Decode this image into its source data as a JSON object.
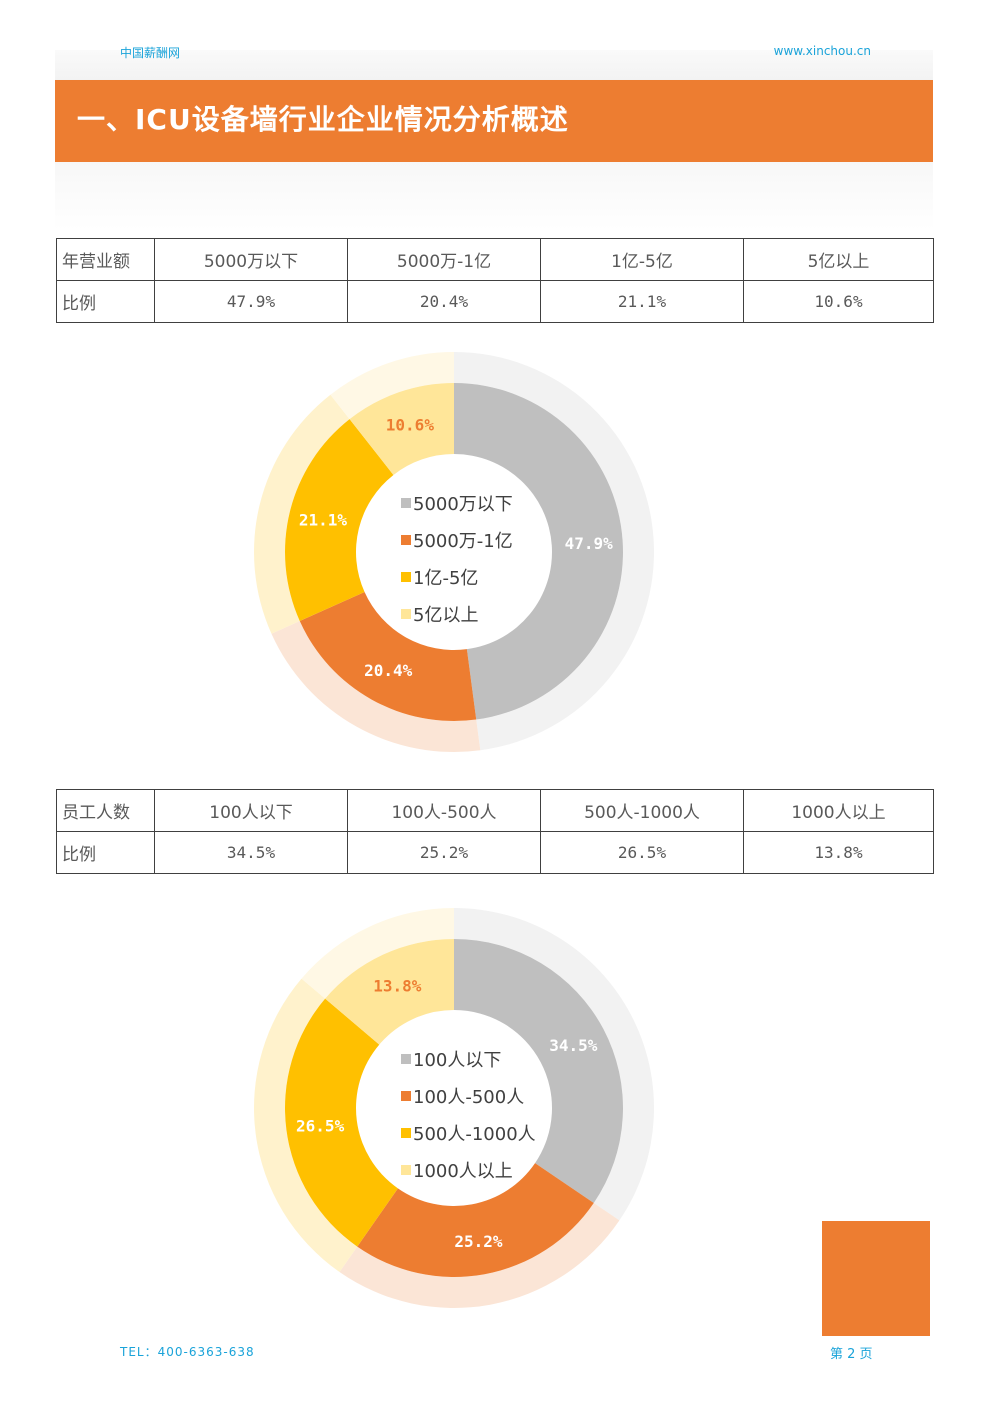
{
  "header": {
    "site_name": "中国薪酬网",
    "url": "www.xinchou.cn"
  },
  "section_title": "一、ICU设备墙行业企业情况分析概述",
  "colors": {
    "accent": "#ed7d31",
    "link": "#1aa3d9",
    "gray": "#bfbfbf",
    "gold": "#ffc000",
    "light_yellow": "#ffe699"
  },
  "table1": {
    "header_label": "年营业额",
    "columns": [
      "5000万以下",
      "5000万-1亿",
      "1亿-5亿",
      "5亿以上"
    ],
    "row_label": "比例",
    "values": [
      "47.9%",
      "20.4%",
      "21.1%",
      "10.6%"
    ]
  },
  "table2": {
    "header_label": "员工人数",
    "columns": [
      "100人以下",
      "100人-500人",
      "500人-1000人",
      "1000人以上"
    ],
    "row_label": "比例",
    "values": [
      "34.5%",
      "25.2%",
      "26.5%",
      "13.8%"
    ]
  },
  "chart_data": [
    {
      "type": "pie",
      "categories": [
        "5000万以下",
        "5000万-1亿",
        "1亿-5亿",
        "5亿以上"
      ],
      "values": [
        47.9,
        20.4,
        21.1,
        10.6
      ],
      "labels": [
        "47.9%",
        "20.4%",
        "21.1%",
        "10.6%"
      ],
      "colors": [
        "#bfbfbf",
        "#ed7d31",
        "#ffc000",
        "#ffe699"
      ],
      "legend": "center"
    },
    {
      "type": "pie",
      "categories": [
        "100人以下",
        "100人-500人",
        "500人-1000人",
        "1000人以上"
      ],
      "values": [
        34.5,
        25.2,
        26.5,
        13.8
      ],
      "labels": [
        "34.5%",
        "25.2%",
        "26.5%",
        "13.8%"
      ],
      "colors": [
        "#bfbfbf",
        "#ed7d31",
        "#ffc000",
        "#ffe699"
      ],
      "legend": "center"
    }
  ],
  "footer": {
    "tel": "TEL：400-6363-638",
    "page": "第 2 页"
  }
}
